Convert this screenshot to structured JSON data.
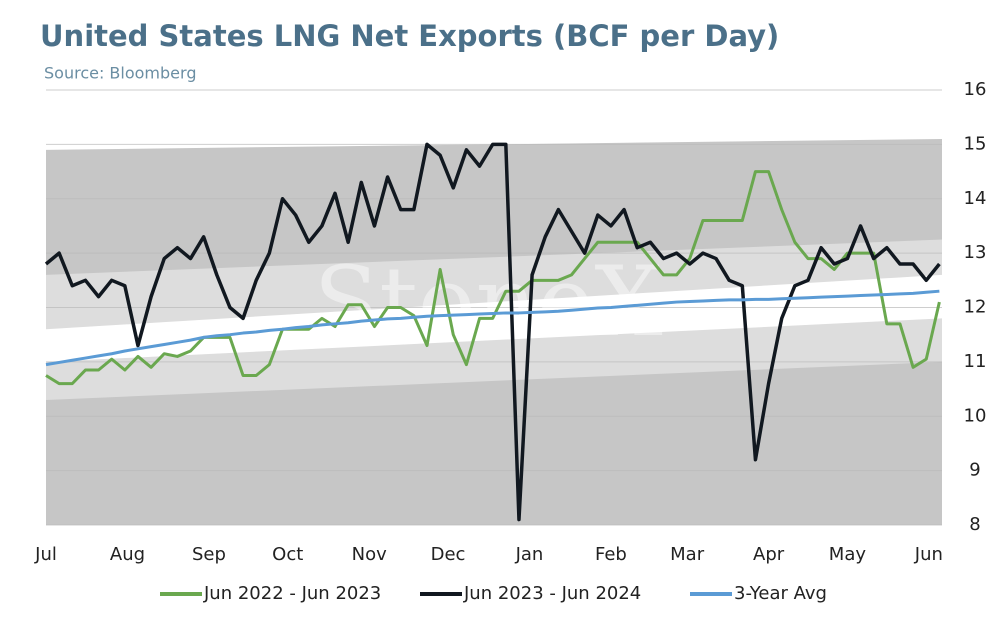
{
  "chart_data": {
    "type": "line",
    "title": "United States LNG Net Exports (BCF per Day)",
    "subtitle": "Source: Bloomberg",
    "watermark": "StoneX",
    "x": [
      0,
      5,
      10,
      15,
      20,
      25,
      30,
      35,
      40,
      45,
      50,
      55,
      60,
      65,
      70,
      75,
      80,
      85,
      90,
      95,
      100,
      105,
      110,
      115,
      120,
      125,
      130,
      135,
      140,
      145,
      150,
      155,
      160,
      165,
      170,
      175,
      180,
      185,
      190,
      195,
      200,
      205,
      210,
      215,
      220,
      225,
      230,
      235,
      240,
      245,
      250,
      255,
      260,
      265,
      270,
      275,
      280,
      285,
      290,
      295,
      300,
      305,
      310,
      315,
      320,
      325,
      330,
      335,
      340
    ],
    "xlim": [
      0,
      341
    ],
    "xticks": [
      {
        "value": 0,
        "label": "Jul"
      },
      {
        "value": 31,
        "label": "Aug"
      },
      {
        "value": 62,
        "label": "Sep"
      },
      {
        "value": 92,
        "label": "Oct"
      },
      {
        "value": 123,
        "label": "Nov"
      },
      {
        "value": 153,
        "label": "Dec"
      },
      {
        "value": 184,
        "label": "Jan"
      },
      {
        "value": 215,
        "label": "Feb"
      },
      {
        "value": 244,
        "label": "Mar"
      },
      {
        "value": 275,
        "label": "Apr"
      },
      {
        "value": 305,
        "label": "May"
      },
      {
        "value": 336,
        "label": "Jun"
      }
    ],
    "ylim": [
      8,
      16
    ],
    "yticks": [
      8,
      9,
      10,
      11,
      12,
      13,
      14,
      15,
      16
    ],
    "grid": true,
    "legend": "bottom",
    "bands": [
      {
        "x": [
          0,
          341
        ],
        "lower": [
          8,
          8
        ],
        "upper": [
          14.9,
          15.1
        ],
        "color": "#c6c6c6"
      },
      {
        "x": [
          0,
          341
        ],
        "lower": [
          10.3,
          11.0
        ],
        "upper": [
          12.6,
          13.25
        ],
        "color": "#dddddd"
      },
      {
        "x": [
          0,
          341
        ],
        "lower": [
          11.0,
          11.8
        ],
        "upper": [
          11.6,
          12.6
        ],
        "color": "#ffffff"
      }
    ],
    "series": [
      {
        "name": "Jun 2022 - Jun 2023",
        "color": "#6aa84f",
        "values": [
          10.75,
          10.6,
          10.6,
          10.85,
          10.85,
          11.05,
          10.85,
          11.1,
          10.9,
          11.15,
          11.1,
          11.2,
          11.45,
          11.45,
          11.45,
          10.75,
          10.75,
          10.95,
          11.6,
          11.6,
          11.6,
          11.8,
          11.65,
          12.05,
          12.05,
          11.65,
          12.0,
          12.0,
          11.85,
          11.3,
          12.7,
          11.5,
          10.95,
          11.8,
          11.8,
          12.3,
          12.3,
          12.5,
          12.5,
          12.5,
          12.6,
          12.9,
          13.2,
          13.2,
          13.2,
          13.2,
          12.9,
          12.6,
          12.6,
          12.9,
          13.6,
          13.6,
          13.6,
          13.6,
          14.5,
          14.5,
          13.8,
          13.2,
          12.9,
          12.9,
          12.7,
          13.0,
          13.0,
          13.0,
          11.7,
          11.7,
          10.9,
          11.05,
          12.1
        ]
      },
      {
        "name": "Jun 2023 - Jun 2024",
        "color": "#111820",
        "values": [
          12.8,
          13.0,
          12.4,
          12.5,
          12.2,
          12.5,
          12.4,
          11.3,
          12.2,
          12.9,
          13.1,
          12.9,
          13.3,
          12.6,
          12.0,
          11.8,
          12.5,
          13.0,
          14.0,
          13.7,
          13.2,
          13.5,
          14.1,
          13.2,
          14.3,
          13.5,
          14.4,
          13.8,
          13.8,
          15.0,
          14.8,
          14.2,
          14.9,
          14.6,
          15.0,
          15.0,
          8.1,
          12.6,
          13.3,
          13.8,
          13.4,
          13.0,
          13.7,
          13.5,
          13.8,
          13.1,
          13.2,
          12.9,
          13.0,
          12.8,
          13.0,
          12.9,
          12.5,
          12.4,
          9.2,
          10.6,
          11.8,
          12.4,
          12.5,
          13.1,
          12.8,
          12.9,
          13.5,
          12.9,
          13.1,
          12.8,
          12.8,
          12.5,
          12.8
        ]
      },
      {
        "name": "3-Year Avg",
        "color": "#5b9bd5",
        "values": [
          10.95,
          10.99,
          11.03,
          11.07,
          11.11,
          11.15,
          11.2,
          11.24,
          11.28,
          11.32,
          11.36,
          11.4,
          11.45,
          11.48,
          11.5,
          11.53,
          11.55,
          11.58,
          11.6,
          11.63,
          11.65,
          11.68,
          11.7,
          11.72,
          11.75,
          11.77,
          11.79,
          11.8,
          11.82,
          11.84,
          11.85,
          11.86,
          11.87,
          11.88,
          11.89,
          11.9,
          11.9,
          11.91,
          11.92,
          11.93,
          11.95,
          11.97,
          11.99,
          12.0,
          12.02,
          12.04,
          12.06,
          12.08,
          12.1,
          12.11,
          12.12,
          12.13,
          12.14,
          12.14,
          12.15,
          12.15,
          12.16,
          12.17,
          12.18,
          12.19,
          12.2,
          12.21,
          12.22,
          12.23,
          12.24,
          12.25,
          12.26,
          12.28,
          12.3
        ]
      }
    ]
  }
}
